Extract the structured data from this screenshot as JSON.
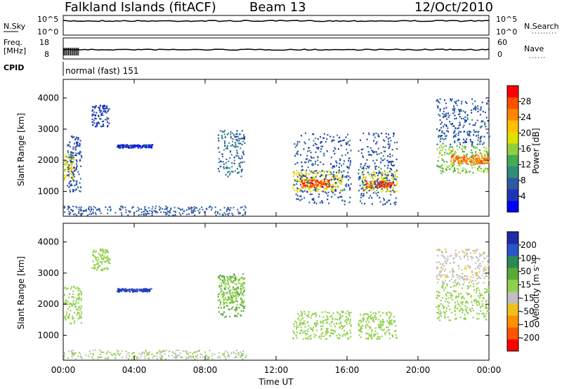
{
  "header": {
    "title": "Falkland Islands (fitACF)",
    "beam": "Beam 13",
    "date": "12/Oct/2010"
  },
  "top_panels": {
    "nsky_label": "N.Sky",
    "nsky_ticks": [
      "10^5",
      "10^0"
    ],
    "nsearch_label": "N.Search",
    "freq_label_1": "Freq.",
    "freq_label_2": "[MHz]",
    "freq_ticks": [
      "18",
      "8"
    ],
    "nave_label": "Nave",
    "nave_ticks": [
      "60",
      "0"
    ],
    "cpid_label": "CPID",
    "cpid_text": "normal (fast) 151"
  },
  "colorbars": {
    "power": {
      "label": "Power [dB]",
      "ticks": [
        "28",
        "24",
        "20",
        "16",
        "12",
        "8",
        "4"
      ],
      "colors": [
        "#0000ff",
        "#1b36b4",
        "#2e5aa0",
        "#2f8e7a",
        "#44aa55",
        "#8fcf3f",
        "#e0e000",
        "#ffc000",
        "#ff8800",
        "#ff5000",
        "#ff0000"
      ]
    },
    "velocity": {
      "label_main": "Velocity [m s",
      "label_sup": "-1",
      "label_end": "]",
      "ticks": [
        "200",
        "100",
        "50",
        "15",
        "-15",
        "-50",
        "-100",
        "-200"
      ],
      "colors": [
        "#1e2aa8",
        "#2a55c8",
        "#2a8a55",
        "#5aaa3a",
        "#8fd04a",
        "#bfbfbf",
        "#f0c020",
        "#ff9000",
        "#ff5500",
        "#ff0000"
      ]
    }
  },
  "chart_data": [
    {
      "type": "heatmap",
      "name": "power",
      "ylabel": "Slant Range [km]",
      "ylim": [
        200,
        4600
      ],
      "yticks": [
        "4000",
        "3000",
        "2000",
        "1000"
      ],
      "xlim_hours": [
        0,
        24
      ],
      "regions": [
        {
          "t": [
            0.0,
            0.6
          ],
          "r": [
            1400,
            2200
          ],
          "v": 18
        },
        {
          "t": [
            0.2,
            1.0
          ],
          "r": [
            1000,
            2800
          ],
          "v": 6
        },
        {
          "t": [
            1.6,
            2.6
          ],
          "r": [
            3100,
            3800
          ],
          "v": 5
        },
        {
          "t": [
            3.0,
            5.0
          ],
          "r": [
            2420,
            2520
          ],
          "v": 4
        },
        {
          "t": [
            8.7,
            10.2
          ],
          "r": [
            1500,
            3000
          ],
          "v": 8
        },
        {
          "t": [
            12.9,
            15.7
          ],
          "r": [
            1000,
            1700
          ],
          "v": 18
        },
        {
          "t": [
            13.4,
            15.0
          ],
          "r": [
            1150,
            1400
          ],
          "v": 26
        },
        {
          "t": [
            13.0,
            16.2
          ],
          "r": [
            600,
            2900
          ],
          "v": 6
        },
        {
          "t": [
            16.8,
            18.8
          ],
          "r": [
            1000,
            1700
          ],
          "v": 18
        },
        {
          "t": [
            17.0,
            18.6
          ],
          "r": [
            1150,
            1350
          ],
          "v": 26
        },
        {
          "t": [
            16.6,
            18.8
          ],
          "r": [
            600,
            2900
          ],
          "v": 6
        },
        {
          "t": [
            21.0,
            24.0
          ],
          "r": [
            1600,
            2500
          ],
          "v": 14
        },
        {
          "t": [
            21.8,
            24.0
          ],
          "r": [
            1900,
            2200
          ],
          "v": 24
        },
        {
          "t": [
            21.0,
            24.0
          ],
          "r": [
            2500,
            4000
          ],
          "v": 6
        }
      ]
    },
    {
      "type": "heatmap",
      "name": "velocity",
      "ylabel": "Slant Range [km]",
      "ylim": [
        200,
        4600
      ],
      "yticks": [
        "4000",
        "3000",
        "2000",
        "1000"
      ],
      "xlabel": "Time UT",
      "xlim_hours": [
        0,
        24
      ],
      "xticks": [
        "00:00",
        "04:00",
        "08:00",
        "12:00",
        "16:00",
        "20:00",
        "00:00"
      ],
      "regions": [
        {
          "t": [
            0.0,
            1.0
          ],
          "r": [
            1400,
            2600
          ],
          "v": 0
        },
        {
          "t": [
            1.6,
            2.6
          ],
          "r": [
            3100,
            3800
          ],
          "v": 0
        },
        {
          "t": [
            3.0,
            5.0
          ],
          "r": [
            2420,
            2520
          ],
          "v": 200
        },
        {
          "t": [
            8.7,
            10.2
          ],
          "r": [
            1600,
            3000
          ],
          "v": 30
        },
        {
          "t": [
            8.7,
            10.2
          ],
          "r": [
            2000,
            2900
          ],
          "v": 0
        },
        {
          "t": [
            12.9,
            16.2
          ],
          "r": [
            900,
            1800
          ],
          "v": 0
        },
        {
          "t": [
            16.6,
            18.8
          ],
          "r": [
            900,
            1800
          ],
          "v": 0
        },
        {
          "t": [
            21.0,
            24.0
          ],
          "r": [
            1500,
            2700
          ],
          "v": 0
        },
        {
          "t": [
            21.0,
            24.0
          ],
          "r": [
            2700,
            3800
          ],
          "v": -40
        }
      ]
    }
  ]
}
